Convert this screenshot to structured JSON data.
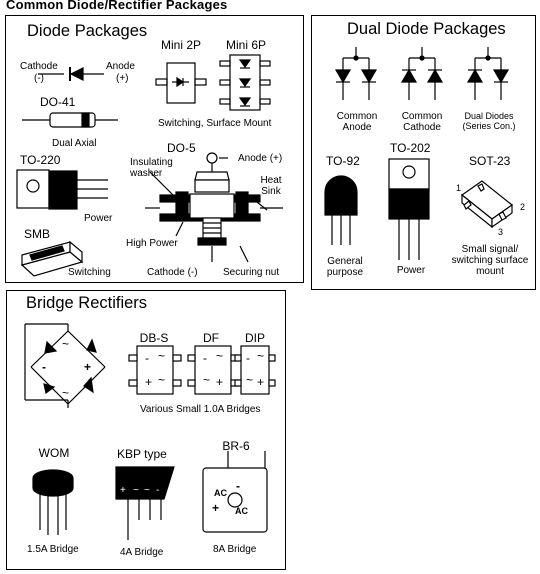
{
  "page_title": "Common Diode/Rectifier Packages",
  "diode_packages": {
    "title": "Diode Packages",
    "cathode": "Cathode",
    "cathode_sign": "(-)",
    "anode": "Anode",
    "anode_sign": "(+)",
    "do41": "DO-41",
    "dual_axial": "Dual Axial",
    "mini2p": "Mini 2P",
    "mini6p": "Mini 6P",
    "switching_sm": "Switching, Surface Mount",
    "to220": "TO-220",
    "power": "Power",
    "do5": "DO-5",
    "anode_plus": "Anode (+)",
    "insulating_washer": "Insulating washer",
    "heat_sink": "Heat Sink",
    "high_power": "High Power",
    "cathode_minus": "Cathode (-)",
    "securing_nut": "Securing nut",
    "smb": "SMB",
    "switching": "Switching"
  },
  "dual_diode": {
    "title": "Dual Diode Packages",
    "common_anode": "Common Anode",
    "common_cathode": "Common Cathode",
    "dual_series": "Dual Diodes (Series Con.)",
    "to92": "TO-92",
    "to202": "TO-202",
    "sot23": "SOT-23",
    "general_purpose": "General purpose",
    "power": "Power",
    "small_signal": "Small signal/ switching surface mount",
    "pin1": "1",
    "pin2": "2",
    "pin3": "3"
  },
  "bridge": {
    "title": "Bridge Rectifiers",
    "dbs": "DB-S",
    "df": "DF",
    "dip": "DIP",
    "various": "Various Small 1.0A Bridges",
    "wom": "WOM",
    "wom_rating": "1.5A Bridge",
    "kbp": "KBP type",
    "kbp_rating": "4A Bridge",
    "br6": "BR-6",
    "br6_rating": "8A Bridge",
    "ac": "AC",
    "tilde": "~",
    "plus": "+",
    "minus": "-"
  }
}
